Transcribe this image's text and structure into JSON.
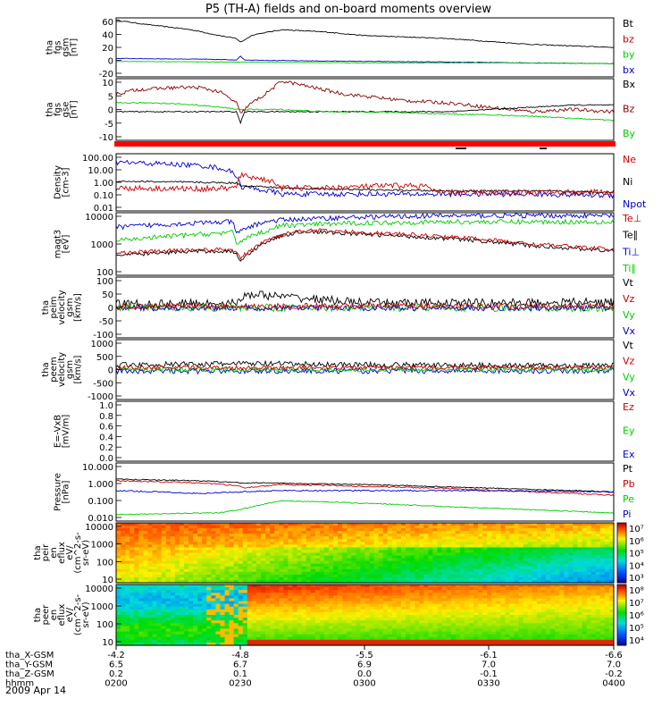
{
  "title": "P5 (TH-A) fields and on-board moments overview",
  "date": "2009 Apr 14",
  "colors": {
    "black": "#000000",
    "red": "#cc0000",
    "darkred": "#8b0000",
    "green": "#00cc00",
    "blue": "#0000cc",
    "strip": "#ff0000"
  },
  "time_axis": {
    "rows": [
      {
        "label": "tha_X-GSM",
        "values": [
          "-4.2",
          "-4.8",
          "-5.5",
          "-6.1",
          "-6.6"
        ]
      },
      {
        "label": "tha_Y-GSM",
        "values": [
          "6.5",
          "6.7",
          "6.9",
          "7.0",
          "7.0"
        ]
      },
      {
        "label": "tha_Z-GSM",
        "values": [
          "0.2",
          "0.1",
          "0.0",
          "-0.1",
          "-0.2"
        ]
      },
      {
        "label": "hhmm",
        "values": [
          "0200",
          "0230",
          "0300",
          "0330",
          "0400"
        ]
      }
    ]
  },
  "chart_data": [
    {
      "type": "line",
      "panel": "fgs_gsm_B",
      "ylabel": [
        "tha",
        "fgs",
        "gsm",
        "[nT]"
      ],
      "yticks": [
        "60",
        "40",
        "20",
        "0",
        "-20"
      ],
      "ylim": [
        -20,
        60
      ],
      "legend": [
        {
          "name": "Bt",
          "color": "#000000"
        },
        {
          "name": "bz",
          "color": "#cc0000"
        },
        {
          "name": "by",
          "color": "#00cc00"
        },
        {
          "name": "bx",
          "color": "#0000cc"
        }
      ],
      "series": [
        {
          "name": "Bt",
          "color": "#000000",
          "x": [
            0,
            6,
            12,
            18,
            24,
            29,
            30,
            33,
            40,
            50,
            60,
            70,
            80,
            90,
            100,
            110,
            120
          ],
          "y": [
            57,
            52,
            48,
            44,
            37,
            32,
            27,
            37,
            44,
            41,
            36,
            34,
            32,
            28,
            24,
            22,
            20
          ],
          "noise": 0.6
        },
        {
          "name": "bx",
          "color": "#0000cc",
          "x": [
            0,
            20,
            29,
            30,
            31,
            40,
            60,
            80,
            100,
            120
          ],
          "y": [
            5,
            4,
            3,
            8,
            3,
            2,
            1,
            0,
            -1,
            -2
          ],
          "noise": 0.4
        },
        {
          "name": "by",
          "color": "#00cc00",
          "x": [
            0,
            30,
            60,
            90,
            120
          ],
          "y": [
            1,
            0,
            -1,
            -1,
            -2
          ],
          "noise": 0.3
        }
      ]
    },
    {
      "type": "line",
      "panel": "fgs_gse_B",
      "ylabel": [
        "tha",
        "fgs",
        "gse",
        "[nT]"
      ],
      "yticks": [
        "10",
        "5",
        "0",
        "-5",
        "-10"
      ],
      "ylim": [
        -14,
        14
      ],
      "legend": [
        {
          "name": "Bx",
          "color": "#000000"
        },
        {
          "name": "Bz",
          "color": "#8b0000"
        },
        {
          "name": "By",
          "color": "#00cc00"
        }
      ],
      "series": [
        {
          "name": "Bz",
          "color": "#8b0000",
          "x": [
            0,
            5,
            15,
            20,
            25,
            29,
            30,
            32,
            36,
            40,
            45,
            50,
            55,
            60,
            70,
            80,
            90,
            100,
            110,
            120
          ],
          "y": [
            7,
            9,
            10,
            10,
            8,
            3,
            -2,
            2,
            7,
            13,
            11,
            9,
            7,
            6,
            4,
            3,
            1,
            -1,
            0,
            -1
          ],
          "noise": 0.8
        },
        {
          "name": "Bx",
          "color": "#000000",
          "x": [
            0,
            20,
            29,
            30,
            31,
            40,
            60,
            80,
            90,
            100,
            110,
            120
          ],
          "y": [
            -1,
            -1,
            -1,
            -6,
            -1,
            -1,
            -1,
            -1,
            0,
            1,
            2,
            2
          ],
          "noise": 0.25
        },
        {
          "name": "By",
          "color": "#00cc00",
          "x": [
            0,
            10,
            20,
            30,
            40,
            50,
            60,
            80,
            100,
            120
          ],
          "y": [
            3,
            3,
            2,
            0,
            0,
            -1,
            -1,
            -2,
            -3,
            -5
          ],
          "noise": 0.3
        }
      ]
    },
    {
      "type": "line",
      "panel": "density",
      "log": true,
      "ylabel": [
        "Density",
        "[cm-3]"
      ],
      "yticks": [
        "100.00",
        "10.00",
        "1.00",
        "0.10",
        "0.01"
      ],
      "ylim": [
        0.01,
        100
      ],
      "legend": [
        {
          "name": "Ne",
          "color": "#cc0000"
        },
        {
          "name": "Ni",
          "color": "#000000"
        },
        {
          "name": "Npot",
          "color": "#0000cc"
        }
      ],
      "series": [
        {
          "name": "Npot",
          "color": "#0000cc",
          "x": [
            0,
            10,
            20,
            25,
            29,
            30,
            35,
            40,
            60,
            80,
            100,
            120
          ],
          "y": [
            25,
            20,
            15,
            10,
            3,
            0.5,
            0.3,
            0.15,
            0.15,
            0.15,
            0.15,
            0.12
          ],
          "noise": 0.18
        },
        {
          "name": "Ni",
          "color": "#000000",
          "x": [
            0,
            20,
            29,
            30,
            40,
            60,
            80,
            100,
            120
          ],
          "y": [
            1.2,
            1,
            0.9,
            0.6,
            0.4,
            0.3,
            0.25,
            0.25,
            0.2
          ],
          "noise": 0.06
        },
        {
          "name": "Ne",
          "color": "#cc0000",
          "x": [
            0,
            20,
            29,
            30,
            34,
            38,
            40,
            50,
            60,
            70,
            75,
            77,
            90,
            120
          ],
          "y": [
            0.4,
            0.35,
            0.4,
            3,
            2,
            1,
            0.4,
            0.4,
            0.5,
            0.6,
            0.5,
            0.2,
            0.2,
            0.2
          ],
          "noise": 0.2
        }
      ]
    },
    {
      "type": "line",
      "panel": "temperature",
      "log": true,
      "ylabel": [
        "magt3",
        "[eV]"
      ],
      "yticks": [
        "10000",
        "1000",
        "100"
      ],
      "ylim": [
        30,
        12000
      ],
      "legend": [
        {
          "name": "Te⊥",
          "color": "#cc0000"
        },
        {
          "name": "Te∥",
          "color": "#000000"
        },
        {
          "name": "Ti⊥",
          "color": "#0000cc"
        },
        {
          "name": "Ti∥",
          "color": "#00cc00"
        }
      ],
      "series": [
        {
          "name": "Ti⊥",
          "color": "#0000cc",
          "x": [
            0,
            20,
            28,
            29,
            32,
            36,
            40,
            60,
            80,
            100,
            120
          ],
          "y": [
            3000,
            4500,
            5000,
            1500,
            3000,
            5000,
            6000,
            8000,
            9000,
            9000,
            9000
          ],
          "noise": 0.1
        },
        {
          "name": "Ti∥",
          "color": "#00cc00",
          "x": [
            0,
            20,
            28,
            29,
            32,
            36,
            40,
            60,
            80,
            100,
            120
          ],
          "y": [
            800,
            1500,
            1800,
            600,
            1200,
            2000,
            3500,
            4500,
            5000,
            5000,
            5000
          ],
          "noise": 0.1
        },
        {
          "name": "Te∥",
          "color": "#000000",
          "x": [
            0,
            20,
            28,
            30,
            33,
            38,
            45,
            60,
            80,
            100,
            120
          ],
          "y": [
            200,
            300,
            300,
            120,
            300,
            1000,
            2000,
            1500,
            1000,
            500,
            300
          ],
          "noise": 0.08
        },
        {
          "name": "Te⊥",
          "color": "#cc0000",
          "x": [
            0,
            20,
            28,
            30,
            33,
            38,
            45,
            60,
            80,
            100,
            120
          ],
          "y": [
            250,
            350,
            350,
            150,
            350,
            1100,
            2300,
            1800,
            1200,
            600,
            350
          ],
          "noise": 0.08
        }
      ]
    },
    {
      "type": "line",
      "panel": "peim_velocity",
      "ylabel": [
        "tha",
        "peim",
        "velocity",
        "gsm",
        "[km/s]"
      ],
      "yticks": [
        "100",
        "50",
        "0",
        "-50",
        "-100"
      ],
      "ylim": [
        -100,
        100
      ],
      "legend": [
        {
          "name": "Vt",
          "color": "#000000"
        },
        {
          "name": "Vz",
          "color": "#cc0000"
        },
        {
          "name": "Vy",
          "color": "#00cc00"
        },
        {
          "name": "Vx",
          "color": "#0000cc"
        }
      ],
      "series": [
        {
          "name": "Vt",
          "color": "#000000",
          "x": [
            0,
            30,
            31,
            60,
            90,
            120
          ],
          "y": [
            12,
            15,
            45,
            15,
            15,
            18
          ],
          "noise": 14
        },
        {
          "name": "Vy",
          "color": "#00cc00",
          "x": [
            0,
            120
          ],
          "y": [
            0,
            -3
          ],
          "noise": 12
        },
        {
          "name": "Vx",
          "color": "#0000cc",
          "x": [
            0,
            120
          ],
          "y": [
            -2,
            -2
          ],
          "noise": 9
        },
        {
          "name": "Vz",
          "color": "#cc0000",
          "x": [
            0,
            120
          ],
          "y": [
            3,
            6
          ],
          "noise": 10
        }
      ]
    },
    {
      "type": "line",
      "panel": "peem_velocity",
      "ylabel": [
        "tha",
        "peem",
        "velocity",
        "gsm",
        "[km/s]"
      ],
      "yticks": [
        "1000",
        "500",
        "0",
        "-500",
        "-1000"
      ],
      "ylim": [
        -1000,
        1000
      ],
      "legend": [
        {
          "name": "Vt",
          "color": "#000000"
        },
        {
          "name": "Vz",
          "color": "#cc0000"
        },
        {
          "name": "Vy",
          "color": "#00cc00"
        },
        {
          "name": "Vx",
          "color": "#0000cc"
        }
      ],
      "series": [
        {
          "name": "Vt",
          "color": "#000000",
          "x": [
            0,
            30,
            60,
            90,
            120
          ],
          "y": [
            150,
            200,
            160,
            140,
            130
          ],
          "noise": 90
        },
        {
          "name": "Vx",
          "color": "#0000cc",
          "x": [
            0,
            120
          ],
          "y": [
            -50,
            -40
          ],
          "noise": 90
        },
        {
          "name": "Vy",
          "color": "#00cc00",
          "x": [
            0,
            120
          ],
          "y": [
            0,
            0
          ],
          "noise": 80
        },
        {
          "name": "Vz",
          "color": "#cc0000",
          "x": [
            0,
            120
          ],
          "y": [
            60,
            70
          ],
          "noise": 70
        }
      ]
    },
    {
      "type": "line",
      "panel": "efield",
      "ylabel": [
        "E=-VxB",
        "[mV/m]"
      ],
      "yticks": [
        "1.0",
        "0.8",
        "0.6",
        "0.4",
        "0.2",
        "0.0"
      ],
      "ylim": [
        0,
        1
      ],
      "legend": [
        {
          "name": "Ez",
          "color": "#cc0000"
        },
        {
          "name": "Ey",
          "color": "#00cc00"
        },
        {
          "name": "Ex",
          "color": "#0000cc"
        }
      ],
      "series": []
    },
    {
      "type": "line",
      "panel": "pressure",
      "log": true,
      "ylabel": [
        "Pressure",
        "[nPa]"
      ],
      "yticks": [
        "10.000",
        "1.000",
        "0.100",
        "0.010"
      ],
      "ylim": [
        0.004,
        15
      ],
      "legend": [
        {
          "name": "Pt",
          "color": "#000000"
        },
        {
          "name": "Pb",
          "color": "#cc0000"
        },
        {
          "name": "Pe",
          "color": "#00cc00"
        },
        {
          "name": "Pi",
          "color": "#0000cc"
        }
      ],
      "series": [
        {
          "name": "Pt",
          "color": "#000000",
          "x": [
            0,
            20,
            30,
            40,
            60,
            80,
            100,
            120
          ],
          "y": [
            1.5,
            1.2,
            0.9,
            0.85,
            0.7,
            0.5,
            0.35,
            0.25
          ],
          "noise": 0.03
        },
        {
          "name": "Pb",
          "color": "#cc0000",
          "x": [
            0,
            20,
            29,
            31,
            40,
            60,
            80,
            100,
            120
          ],
          "y": [
            1.2,
            0.9,
            0.6,
            0.45,
            0.7,
            0.55,
            0.4,
            0.25,
            0.15
          ],
          "noise": 0.04
        },
        {
          "name": "Pi",
          "color": "#0000cc",
          "x": [
            0,
            10,
            20,
            30,
            40,
            60,
            80,
            100,
            120
          ],
          "y": [
            0.3,
            0.25,
            0.2,
            0.25,
            0.3,
            0.3,
            0.3,
            0.28,
            0.25
          ],
          "noise": 0.04
        },
        {
          "name": "Pe",
          "color": "#00cc00",
          "x": [
            0,
            10,
            25,
            30,
            35,
            40,
            60,
            80,
            100,
            120
          ],
          "y": [
            0.01,
            0.011,
            0.013,
            0.02,
            0.04,
            0.07,
            0.05,
            0.03,
            0.02,
            0.012
          ],
          "noise": 0.03
        }
      ]
    },
    {
      "type": "heatmap",
      "panel": "peir_eflux",
      "ylabel": [
        "tha",
        "peir",
        "en",
        "eflux",
        "eV/",
        "(cm^2-s-",
        "sr-eV)"
      ],
      "yticks": [
        "10000",
        "1000",
        "100",
        "10"
      ],
      "ylim": [
        5,
        30000
      ],
      "colorbar_ticks": [
        "10⁷",
        "10⁶",
        "10⁵",
        "10⁴",
        "10³"
      ]
    },
    {
      "type": "heatmap",
      "panel": "peer_eflux",
      "ylabel": [
        "tha",
        "peer",
        "en",
        "eflux",
        "eV/",
        "(cm^2-s-",
        "sr-eV)"
      ],
      "yticks": [
        "10000",
        "1000",
        "100",
        "10"
      ],
      "ylim": [
        5,
        30000
      ],
      "colorbar_ticks": [
        "10⁸",
        "10⁷",
        "10⁶",
        "10⁵",
        "10⁴"
      ]
    }
  ]
}
